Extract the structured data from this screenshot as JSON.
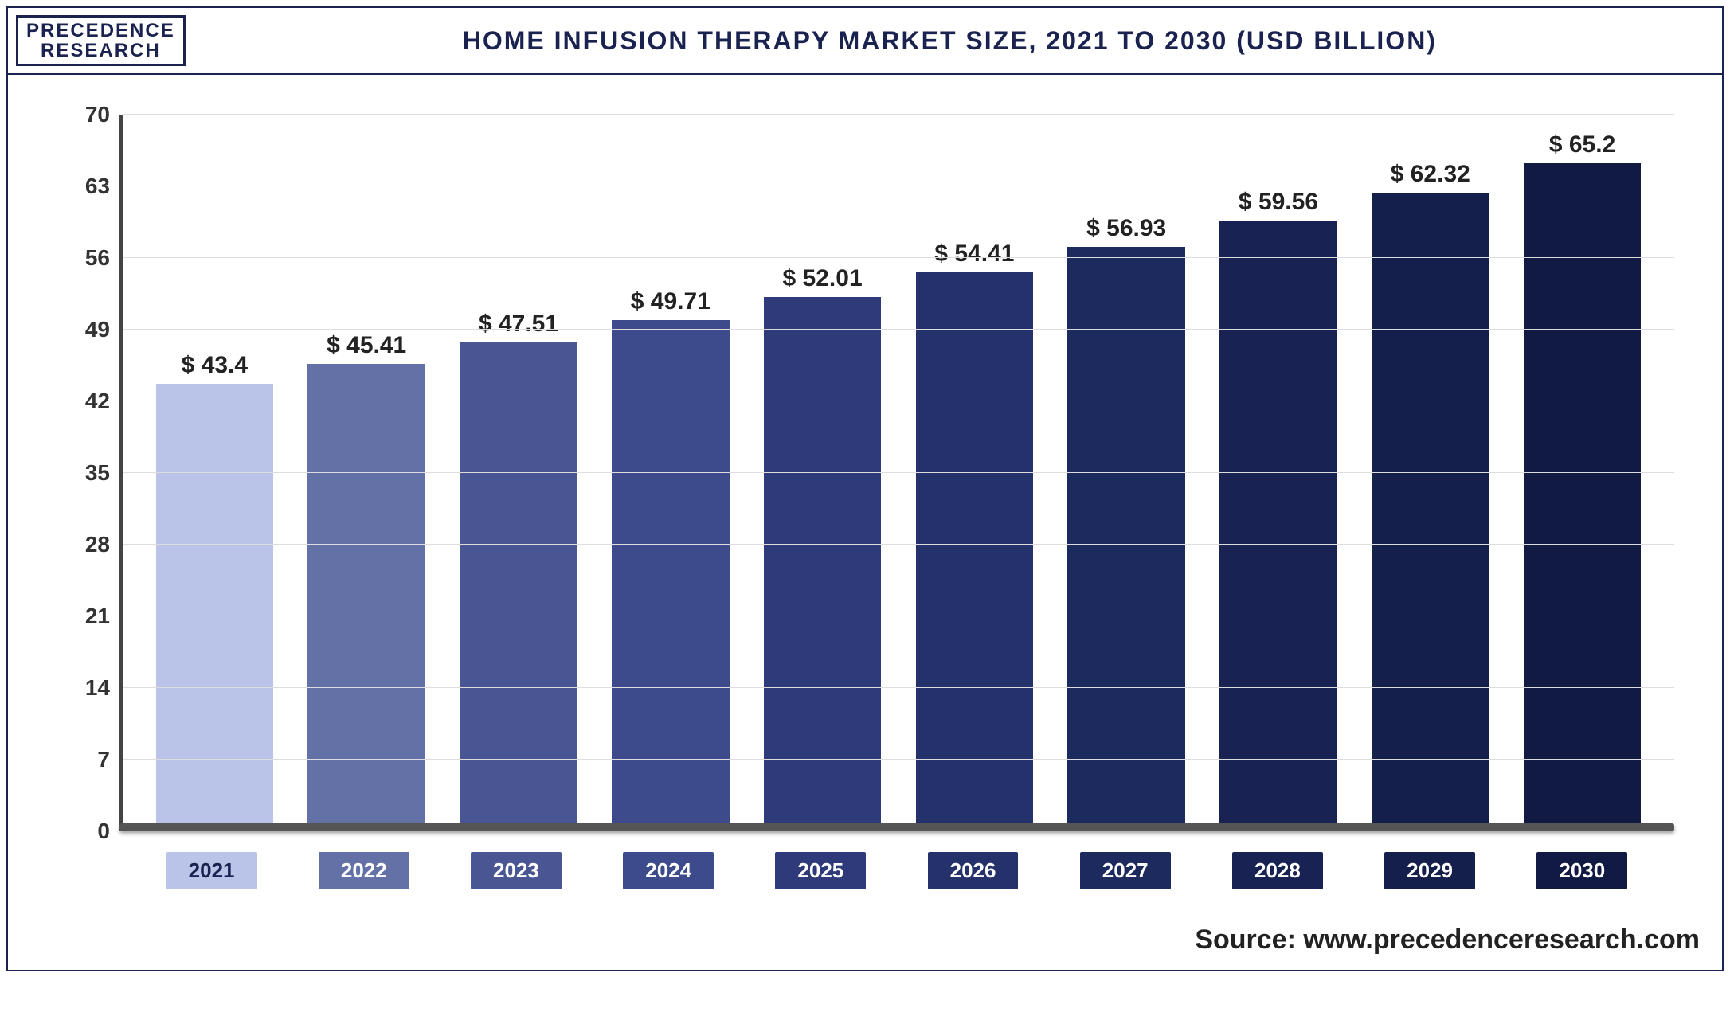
{
  "logo": {
    "line1": "PRECEDENCE",
    "line2": "RESEARCH"
  },
  "title": "HOME INFUSION THERAPY MARKET SIZE, 2021 TO 2030 (USD BILLION)",
  "source": "Source: www.precedenceresearch.com",
  "chart": {
    "type": "bar",
    "ylim": [
      0,
      70
    ],
    "ytick_step": 7,
    "yticks": [
      0,
      7,
      14,
      21,
      28,
      35,
      42,
      49,
      56,
      63,
      70
    ],
    "grid_color": "#dddddd",
    "axis_color": "#444444",
    "background_color": "#ffffff",
    "label_fontsize": 30,
    "tick_fontsize": 28,
    "title_fontsize": 32,
    "currency_prefix": "$ ",
    "bar_width": 0.82,
    "bars": [
      {
        "year": "2021",
        "value": 43.4,
        "label": "$ 43.4",
        "color": "#b9c4e8"
      },
      {
        "year": "2022",
        "value": 45.41,
        "label": "$ 45.41",
        "color": "#6471a6"
      },
      {
        "year": "2023",
        "value": 47.51,
        "label": "$ 47.51",
        "color": "#4a5694"
      },
      {
        "year": "2024",
        "value": 49.71,
        "label": "$ 49.71",
        "color": "#3d4a8b"
      },
      {
        "year": "2025",
        "value": 52.01,
        "label": "$ 52.01",
        "color": "#2e3a7a"
      },
      {
        "year": "2026",
        "value": 54.41,
        "label": "$ 54.41",
        "color": "#25316b"
      },
      {
        "year": "2027",
        "value": 56.93,
        "label": "$ 56.93",
        "color": "#1d2a5e"
      },
      {
        "year": "2028",
        "value": 59.56,
        "label": "$ 59.56",
        "color": "#182354"
      },
      {
        "year": "2029",
        "value": 62.32,
        "label": "$ 62.32",
        "color": "#141f4c"
      },
      {
        "year": "2030",
        "value": 65.2,
        "label": "$ 65.2",
        "color": "#111a42"
      }
    ],
    "x_label_colors": [
      "#b9c4e8",
      "#6471a6",
      "#4a5694",
      "#3d4a8b",
      "#2e3a7a",
      "#25316b",
      "#1d2a5e",
      "#182354",
      "#141f4c",
      "#111a42"
    ]
  }
}
